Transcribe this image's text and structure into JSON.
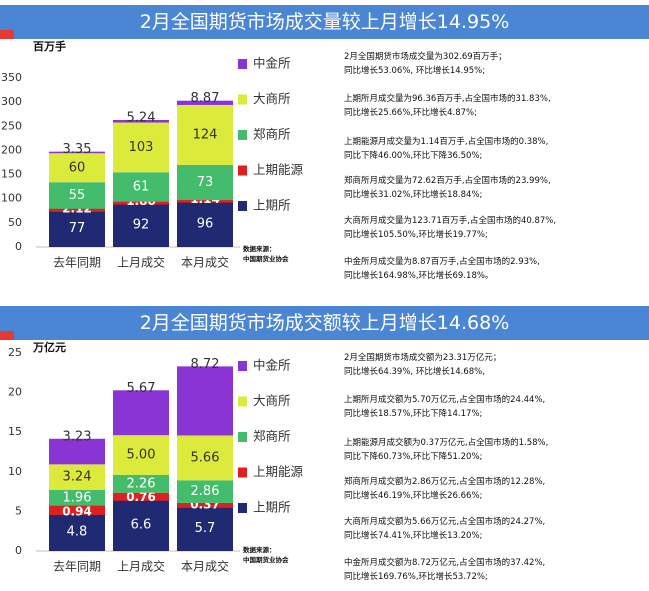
{
  "colors": {
    "banner": "#4a86d4",
    "shfe": "#1f2a72",
    "ine": "#e02020",
    "zce": "#43bd6b",
    "dce": "#dcea3c",
    "cffex": "#8a34d6"
  },
  "chart_data": [
    {
      "type": "bar",
      "stacked": true,
      "title": "2月全国期货市场成交量较上月增长14.95%",
      "ylabel": "百万手",
      "categories": [
        "去年同期",
        "上月成交",
        "本月成交"
      ],
      "ylim": [
        0,
        350
      ],
      "yticks": [
        "0",
        "50",
        "100",
        "150",
        "200",
        "250",
        "300",
        "350"
      ],
      "grid": false,
      "legend_position": "right",
      "series": [
        {
          "name": "上期所",
          "values": [
            77,
            92,
            96
          ],
          "labels": [
            "77",
            "92",
            "96"
          ]
        },
        {
          "name": "上期能源",
          "values": [
            2.12,
            1.8,
            1.14
          ],
          "labels": [
            "2.12",
            "1.80",
            "1.14"
          ]
        },
        {
          "name": "郑商所",
          "values": [
            55,
            61,
            73
          ],
          "labels": [
            "55",
            "61",
            "73"
          ]
        },
        {
          "name": "大商所",
          "values": [
            60,
            103,
            124
          ],
          "labels": [
            "60",
            "103",
            "124"
          ]
        },
        {
          "name": "中金所",
          "values": [
            3.35,
            5.24,
            8.87
          ],
          "labels": [
            "3.35",
            "5.24",
            "8.87"
          ]
        }
      ]
    },
    {
      "type": "bar",
      "stacked": true,
      "title": "2月全国期货市场成交额较上月增长14.68%",
      "ylabel": "万亿元",
      "categories": [
        "去年同期",
        "上月成交",
        "本月成交"
      ],
      "ylim": [
        0,
        25
      ],
      "yticks": [
        "0",
        "5",
        "10",
        "15",
        "20",
        "25"
      ],
      "grid": false,
      "legend_position": "right",
      "series": [
        {
          "name": "上期所",
          "values": [
            4.8,
            6.6,
            5.7
          ],
          "labels": [
            "4.8",
            "6.6",
            "5.7"
          ]
        },
        {
          "name": "上期能源",
          "values": [
            0.94,
            0.76,
            0.37
          ],
          "labels": [
            "0.94",
            "0.76",
            "0.37"
          ]
        },
        {
          "name": "郑商所",
          "values": [
            1.96,
            2.26,
            2.86
          ],
          "labels": [
            "1.96",
            "2.26",
            "2.86"
          ]
        },
        {
          "name": "大商所",
          "values": [
            3.24,
            5.0,
            5.66
          ],
          "labels": [
            "3.24",
            "5.00",
            "5.66"
          ]
        },
        {
          "name": "中金所",
          "values": [
            3.23,
            5.67,
            8.72
          ],
          "labels": [
            "3.23",
            "5.67",
            "8.72"
          ]
        }
      ]
    }
  ],
  "panels": [
    {
      "notes": [
        "2月全国期货市场成交量为302.69百万手；\n同比增长53.06%, 环比增长14.95%;",
        "上期所月成交量为96.36百万手,占全国市场的31.83%,\n同比增长25.66%,环比增长4.87%;",
        "上期能源月成交量为1.14百万手,占全国市场的0.38%,\n同比下降46.00%,环比下降36.50%;",
        "郑商所月成交量为72.62百万手,占全国市场的23.99%,\n同比增长31.02%,环比增长18.84%;",
        "大商所月成交量为123.71百万手,占全国市场的40.87%,\n同比增长105.50%,环比增长19.77%;",
        "中金所月成交量为8.87百万手,占全国市场的2.93%,\n同比增长164.98%,环比增长69.18%。"
      ],
      "source": "数据来源：\n中国期货业协会"
    },
    {
      "notes": [
        "2月全国期货市场成交额为23.31万亿元；\n同比增长64.39%, 环比增长14.68%,",
        "上期所月成交额为5.70万亿元,占全国市场的24.44%,\n同比增长18.57%,环比下降14.17%;",
        "上期能源月成交额为0.37万亿元,占全国市场的1.58%,\n同比下降60.73%,环比下降51.20%;",
        "郑商所月成交额为2.86万亿元,占全国市场的12.28%,\n同比增长46.19%,环比增长26.66%;",
        "大商所月成交额为5.66万亿元,占全国市场的24.27%,\n同比增长74.41%,环比增长13.20%;",
        "中金所月成交额为8.72万亿元,占全国市场的37.42%,\n同比增长169.76%,环比增长53.72%;"
      ],
      "source": "数据来源：\n中国期货业协会"
    }
  ]
}
